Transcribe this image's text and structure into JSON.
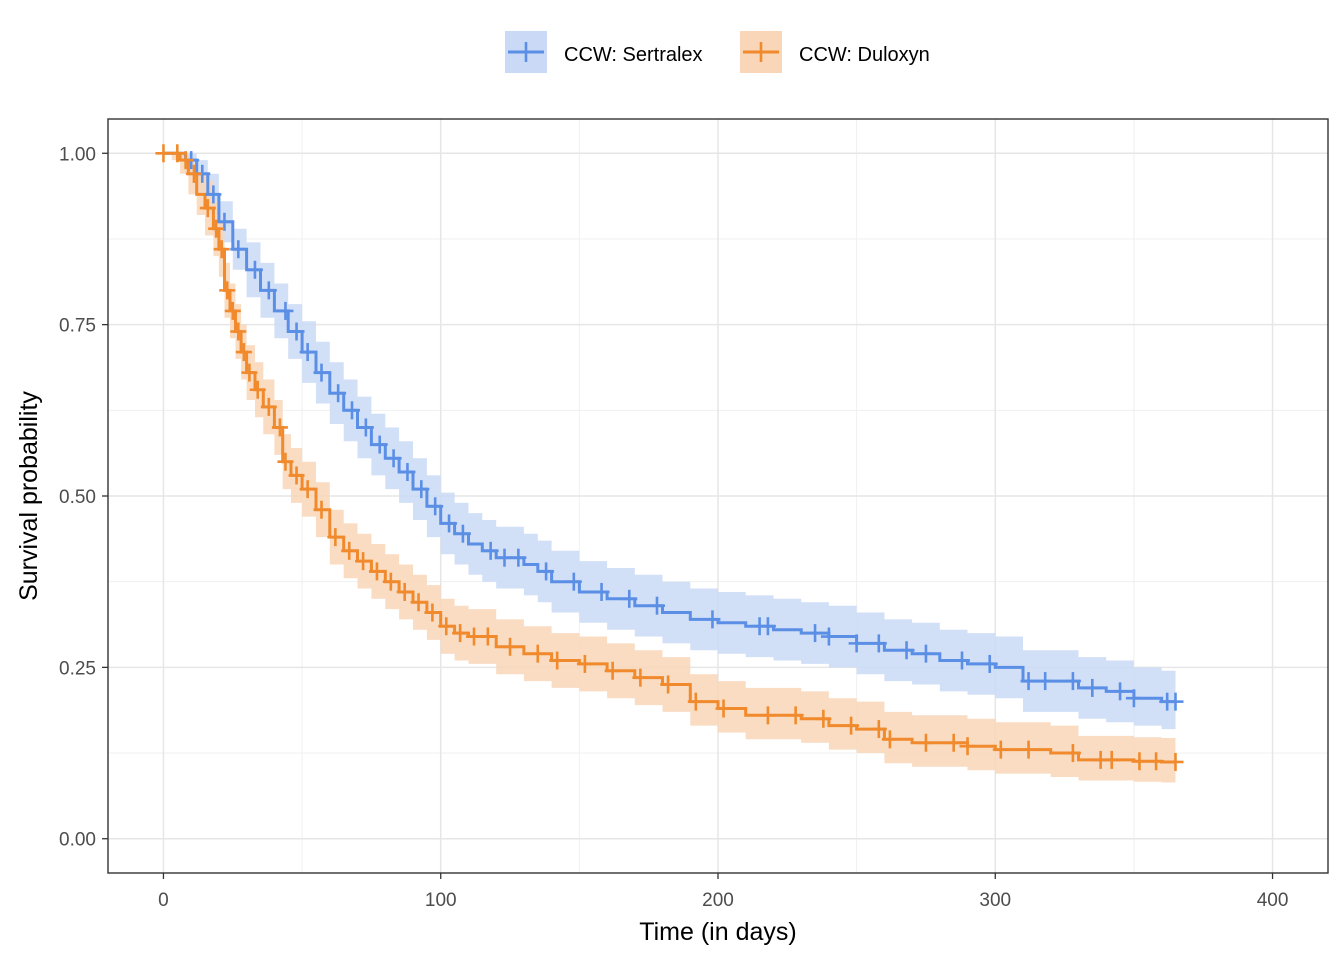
{
  "chart_data": {
    "type": "line",
    "subtype": "kaplan-meier survival curve with confidence bands and censor marks",
    "xlabel": "Time (in days)",
    "ylabel": "Survival probability",
    "xlim": [
      -20,
      420
    ],
    "ylim": [
      -0.05,
      1.05
    ],
    "x_ticks": [
      0,
      100,
      200,
      300,
      400
    ],
    "x_tick_labels": [
      "0",
      "100",
      "200",
      "300",
      "400"
    ],
    "y_ticks": [
      0,
      0.25,
      0.5,
      0.75,
      1
    ],
    "y_tick_labels": [
      "0.00",
      "0.25",
      "0.50",
      "0.75",
      "1.00"
    ],
    "grid": true,
    "legend_position": "top",
    "series": [
      {
        "name": "CCW: Sertralex",
        "color": "#5B8FE6",
        "band_color": "#C9D9F6",
        "x": [
          0,
          5,
          8,
          12,
          16,
          20,
          25,
          30,
          35,
          40,
          45,
          50,
          55,
          60,
          65,
          70,
          75,
          80,
          85,
          90,
          95,
          100,
          105,
          110,
          115,
          120,
          125,
          130,
          135,
          140,
          150,
          160,
          170,
          180,
          190,
          200,
          210,
          220,
          230,
          240,
          250,
          260,
          270,
          280,
          290,
          300,
          310,
          320,
          330,
          340,
          350,
          360,
          365
        ],
        "y": [
          1.0,
          1.0,
          0.99,
          0.97,
          0.94,
          0.9,
          0.86,
          0.83,
          0.8,
          0.77,
          0.74,
          0.71,
          0.68,
          0.65,
          0.625,
          0.6,
          0.575,
          0.555,
          0.535,
          0.51,
          0.485,
          0.46,
          0.445,
          0.43,
          0.42,
          0.41,
          0.41,
          0.4,
          0.39,
          0.375,
          0.36,
          0.35,
          0.34,
          0.33,
          0.32,
          0.315,
          0.31,
          0.305,
          0.3,
          0.295,
          0.285,
          0.275,
          0.27,
          0.26,
          0.255,
          0.25,
          0.23,
          0.23,
          0.22,
          0.215,
          0.205,
          0.2,
          0.2
        ],
        "lower": [
          1.0,
          0.99,
          0.97,
          0.94,
          0.91,
          0.87,
          0.83,
          0.79,
          0.76,
          0.73,
          0.7,
          0.665,
          0.635,
          0.605,
          0.58,
          0.555,
          0.53,
          0.51,
          0.49,
          0.465,
          0.44,
          0.415,
          0.4,
          0.385,
          0.375,
          0.365,
          0.365,
          0.355,
          0.345,
          0.33,
          0.315,
          0.305,
          0.295,
          0.285,
          0.275,
          0.27,
          0.265,
          0.26,
          0.255,
          0.25,
          0.24,
          0.23,
          0.225,
          0.215,
          0.21,
          0.205,
          0.185,
          0.185,
          0.175,
          0.17,
          0.165,
          0.16,
          0.16
        ],
        "upper": [
          1.0,
          1.0,
          1.0,
          0.99,
          0.97,
          0.93,
          0.89,
          0.87,
          0.84,
          0.81,
          0.78,
          0.755,
          0.725,
          0.695,
          0.67,
          0.645,
          0.62,
          0.6,
          0.58,
          0.555,
          0.53,
          0.505,
          0.49,
          0.475,
          0.465,
          0.455,
          0.455,
          0.445,
          0.435,
          0.42,
          0.405,
          0.395,
          0.385,
          0.375,
          0.365,
          0.36,
          0.355,
          0.35,
          0.345,
          0.34,
          0.33,
          0.32,
          0.315,
          0.305,
          0.3,
          0.295,
          0.275,
          0.275,
          0.265,
          0.26,
          0.25,
          0.245,
          0.245
        ],
        "censor_x": [
          10,
          14,
          18,
          22,
          27,
          33,
          38,
          44,
          48,
          52,
          57,
          63,
          68,
          73,
          78,
          83,
          88,
          93,
          98,
          103,
          108,
          118,
          123,
          128,
          138,
          148,
          158,
          168,
          178,
          198,
          215,
          218,
          235,
          240,
          250,
          258,
          268,
          275,
          288,
          298,
          312,
          318,
          328,
          335,
          345,
          350,
          362,
          365
        ]
      },
      {
        "name": "CCW: Duloxyn",
        "color": "#F08A2C",
        "band_color": "#F8D6B7",
        "x": [
          0,
          3,
          6,
          9,
          12,
          15,
          18,
          20,
          22,
          24,
          26,
          28,
          30,
          33,
          36,
          40,
          43,
          46,
          50,
          55,
          60,
          65,
          70,
          75,
          80,
          85,
          90,
          95,
          100,
          105,
          110,
          120,
          130,
          140,
          150,
          160,
          170,
          180,
          190,
          200,
          210,
          220,
          230,
          240,
          250,
          260,
          270,
          280,
          290,
          300,
          310,
          320,
          330,
          340,
          350,
          360,
          365
        ],
        "y": [
          1.0,
          1.0,
          0.99,
          0.97,
          0.94,
          0.92,
          0.89,
          0.86,
          0.8,
          0.77,
          0.74,
          0.71,
          0.68,
          0.655,
          0.63,
          0.6,
          0.55,
          0.53,
          0.51,
          0.48,
          0.44,
          0.42,
          0.405,
          0.39,
          0.375,
          0.36,
          0.345,
          0.33,
          0.31,
          0.3,
          0.295,
          0.28,
          0.27,
          0.26,
          0.255,
          0.245,
          0.235,
          0.225,
          0.2,
          0.19,
          0.18,
          0.18,
          0.175,
          0.165,
          0.16,
          0.145,
          0.14,
          0.14,
          0.135,
          0.13,
          0.13,
          0.125,
          0.115,
          0.115,
          0.113,
          0.112,
          0.112
        ],
        "lower": [
          1.0,
          0.99,
          0.97,
          0.94,
          0.91,
          0.88,
          0.85,
          0.82,
          0.76,
          0.73,
          0.7,
          0.67,
          0.64,
          0.615,
          0.59,
          0.56,
          0.51,
          0.49,
          0.47,
          0.44,
          0.4,
          0.38,
          0.365,
          0.35,
          0.335,
          0.32,
          0.305,
          0.29,
          0.27,
          0.26,
          0.255,
          0.24,
          0.23,
          0.22,
          0.215,
          0.205,
          0.195,
          0.185,
          0.165,
          0.155,
          0.145,
          0.145,
          0.14,
          0.13,
          0.125,
          0.11,
          0.105,
          0.105,
          0.1,
          0.095,
          0.095,
          0.09,
          0.085,
          0.085,
          0.083,
          0.082,
          0.082
        ],
        "upper": [
          1.0,
          1.0,
          1.0,
          0.99,
          0.97,
          0.96,
          0.93,
          0.9,
          0.84,
          0.81,
          0.78,
          0.75,
          0.72,
          0.695,
          0.67,
          0.64,
          0.59,
          0.57,
          0.55,
          0.52,
          0.48,
          0.46,
          0.445,
          0.43,
          0.415,
          0.4,
          0.385,
          0.37,
          0.35,
          0.34,
          0.335,
          0.32,
          0.31,
          0.3,
          0.295,
          0.285,
          0.275,
          0.265,
          0.24,
          0.23,
          0.22,
          0.22,
          0.215,
          0.205,
          0.2,
          0.185,
          0.18,
          0.18,
          0.175,
          0.17,
          0.17,
          0.165,
          0.15,
          0.15,
          0.148,
          0.147,
          0.147
        ],
        "censor_x": [
          0,
          5,
          8,
          11,
          16,
          19,
          21,
          23,
          25,
          27,
          29,
          31,
          34,
          38,
          42,
          44,
          48,
          52,
          57,
          62,
          67,
          72,
          77,
          82,
          87,
          92,
          97,
          102,
          107,
          112,
          117,
          125,
          135,
          142,
          152,
          162,
          172,
          182,
          192,
          202,
          218,
          228,
          238,
          248,
          258,
          262,
          275,
          285,
          290,
          302,
          312,
          328,
          338,
          342,
          352,
          358,
          365
        ]
      }
    ]
  }
}
